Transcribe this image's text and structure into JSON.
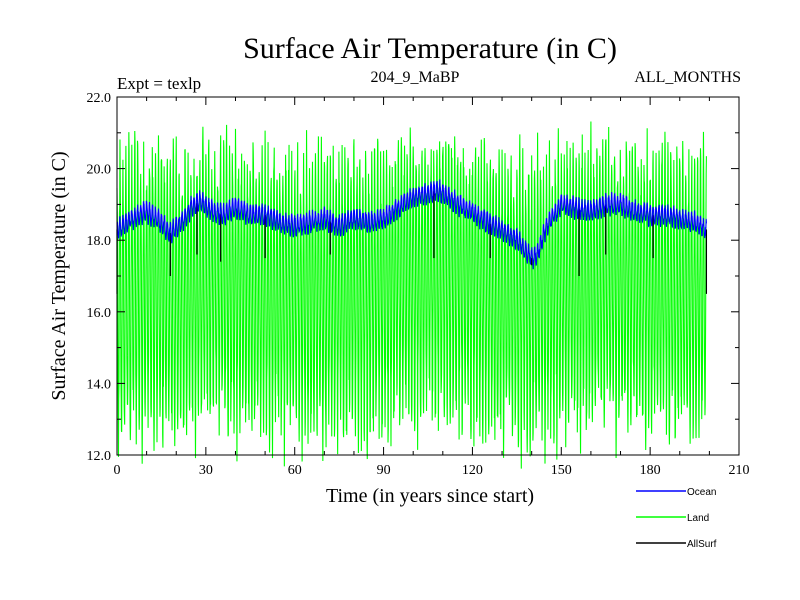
{
  "chart_data": {
    "type": "line",
    "title": "Surface Air Temperature (in C)",
    "subtitle_left": "Expt = texlp",
    "subtitle_center": "204_9_MaBP",
    "subtitle_right": "ALL_MONTHS",
    "xlabel": "Time (in years since start)",
    "ylabel": "Surface Air Temperature (in C)",
    "xlim": [
      0,
      210
    ],
    "ylim": [
      12.0,
      22.0
    ],
    "x_ticks": [
      0,
      30,
      60,
      90,
      120,
      150,
      180,
      210
    ],
    "x_tick_labels": [
      "0",
      "30",
      "60",
      "90",
      "120",
      "150",
      "180",
      "210"
    ],
    "y_ticks": [
      12,
      14,
      16,
      18,
      20,
      22
    ],
    "y_tick_labels": [
      "12.0",
      "14.0",
      "16.0",
      "18.0",
      "20.0",
      "22.0"
    ],
    "data_x_range": [
      0,
      199
    ],
    "series": [
      {
        "name": "Land",
        "color": "#00ff00",
        "summary": "monthly values oscillating between about 13.3 and 21.2 C, extremes 12.3 to 21.4 C",
        "annual_mean_x": [
          0,
          10,
          20,
          30,
          40,
          50,
          60,
          70,
          80,
          90,
          100,
          110,
          120,
          130,
          140,
          150,
          160,
          170,
          180,
          190,
          199
        ],
        "annual_mean_y": [
          16.3,
          16.6,
          16.4,
          16.8,
          16.6,
          16.5,
          16.4,
          16.3,
          16.5,
          16.6,
          16.9,
          17.0,
          16.7,
          16.5,
          16.2,
          16.6,
          16.8,
          16.7,
          16.6,
          16.5,
          16.4
        ],
        "seasonal_amplitude": 3.7
      },
      {
        "name": "Ocean",
        "color": "#0000ff",
        "x": [
          0,
          5,
          10,
          15,
          18,
          22,
          25,
          28,
          32,
          36,
          40,
          45,
          50,
          55,
          60,
          65,
          70,
          75,
          80,
          85,
          90,
          95,
          100,
          105,
          108,
          112,
          115,
          120,
          125,
          130,
          135,
          140,
          142,
          145,
          150,
          155,
          160,
          165,
          170,
          175,
          180,
          185,
          190,
          195,
          199
        ],
        "y": [
          18.3,
          18.6,
          18.8,
          18.5,
          18.2,
          18.5,
          18.9,
          19.1,
          18.8,
          18.7,
          18.9,
          18.7,
          18.7,
          18.5,
          18.4,
          18.5,
          18.6,
          18.4,
          18.6,
          18.5,
          18.6,
          18.9,
          19.2,
          19.3,
          19.4,
          19.2,
          19.0,
          18.8,
          18.5,
          18.3,
          18.0,
          17.5,
          17.6,
          18.4,
          19.0,
          18.9,
          18.8,
          19.0,
          19.0,
          18.8,
          18.7,
          18.7,
          18.6,
          18.5,
          18.3
        ],
        "seasonal_amplitude": 0.25
      },
      {
        "name": "AllSurf",
        "color": "#000000",
        "summary": "occasional excursions visible beneath the other series, roughly 16.5 to 18.8 C",
        "spikes_x": [
          0,
          18,
          27,
          35,
          50,
          72,
          107,
          126,
          140,
          156,
          165,
          181,
          199
        ],
        "spikes_y": [
          16.5,
          17.0,
          17.6,
          17.4,
          17.5,
          17.6,
          17.5,
          17.5,
          17.3,
          17.0,
          17.6,
          17.5,
          16.5
        ]
      }
    ],
    "legend": [
      {
        "name": "Ocean",
        "color": "#0000ff"
      },
      {
        "name": "Land",
        "color": "#00ff00"
      },
      {
        "name": "AllSurf",
        "color": "#000000"
      }
    ],
    "legend_position": "bottom-right, below plot",
    "grid": false
  }
}
